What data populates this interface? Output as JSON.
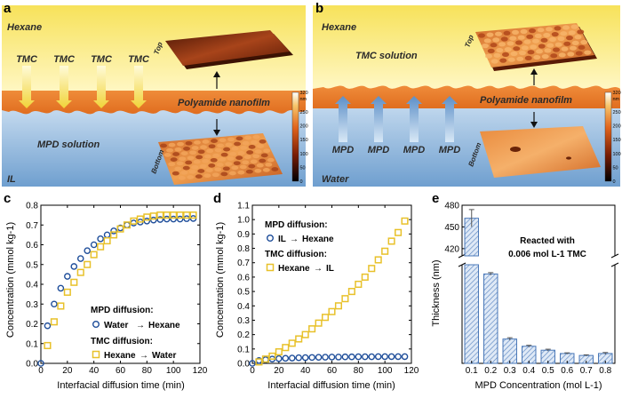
{
  "panels": {
    "a": {
      "letter": "a",
      "top_phase": "Hexane",
      "bottom_phase": "IL",
      "arrow_label": "TMC",
      "arrow_count": 4,
      "film_label": "Polyamide nanofilm",
      "solution_label": "MPD solution",
      "surface_top_label": "Top",
      "surface_bottom_label": "Bottom",
      "colorbar_ticks": [
        "320",
        "nm",
        "250",
        "200",
        "150",
        "100",
        "50",
        "0"
      ]
    },
    "b": {
      "letter": "b",
      "top_phase": "Hexane",
      "bottom_phase": "Water",
      "solution_label": "TMC solution",
      "arrow_label": "MPD",
      "arrow_count": 4,
      "film_label": "Polyamide nanofilm",
      "surface_top_label": "Top",
      "surface_bottom_label": "Bottom",
      "colorbar_ticks": [
        "320",
        "nm",
        "250",
        "200",
        "150",
        "100",
        "50",
        "0"
      ]
    }
  },
  "colors": {
    "series_blue": "#1f4e9a",
    "series_yellow": "#e8c12a",
    "bar_edge": "#4a78b8"
  },
  "chart_data": [
    {
      "panel": "c",
      "type": "scatter",
      "xlabel": "Interfacial diffusion time (min)",
      "ylabel": "Concentration (mmol kg-1)",
      "xlim": [
        0,
        120
      ],
      "ylim": [
        0,
        0.8
      ],
      "xticks": [
        0,
        20,
        40,
        60,
        80,
        100,
        120
      ],
      "yticks": [
        0,
        0.1,
        0.2,
        0.3,
        0.4,
        0.5,
        0.6,
        0.7,
        0.8
      ],
      "legend_group1": "MPD diffusion:",
      "legend_group2": "TMC diffusion:",
      "series": [
        {
          "name": "Water",
          "name2": "Hexane",
          "marker": "circle",
          "x": [
            0,
            5,
            10,
            15,
            20,
            25,
            30,
            35,
            40,
            45,
            50,
            55,
            60,
            65,
            70,
            75,
            80,
            85,
            90,
            95,
            100,
            105,
            110,
            115
          ],
          "y": [
            0.0,
            0.19,
            0.3,
            0.38,
            0.44,
            0.49,
            0.53,
            0.57,
            0.6,
            0.63,
            0.65,
            0.67,
            0.685,
            0.7,
            0.71,
            0.715,
            0.72,
            0.725,
            0.728,
            0.73,
            0.73,
            0.73,
            0.732,
            0.733
          ]
        },
        {
          "name": "Hexane",
          "name2": "Water",
          "marker": "square",
          "x": [
            5,
            10,
            15,
            20,
            25,
            30,
            35,
            40,
            45,
            50,
            55,
            60,
            65,
            70,
            75,
            80,
            85,
            90,
            95,
            100,
            105,
            110,
            115
          ],
          "y": [
            0.09,
            0.21,
            0.29,
            0.36,
            0.41,
            0.46,
            0.5,
            0.55,
            0.59,
            0.62,
            0.65,
            0.68,
            0.7,
            0.72,
            0.73,
            0.74,
            0.745,
            0.75,
            0.75,
            0.75,
            0.75,
            0.75,
            0.75
          ]
        }
      ]
    },
    {
      "panel": "d",
      "type": "scatter",
      "xlabel": "Interfacial diffusion time (min)",
      "ylabel": "Concentration (mmol kg-1)",
      "xlim": [
        0,
        120
      ],
      "ylim": [
        0,
        1.1
      ],
      "xticks": [
        0,
        20,
        40,
        60,
        80,
        100,
        120
      ],
      "yticks": [
        0,
        0.1,
        0.2,
        0.3,
        0.4,
        0.5,
        0.6,
        0.7,
        0.8,
        0.9,
        1.0,
        1.1
      ],
      "legend_group1": "MPD diffusion:",
      "legend_group2": "TMC diffusion:",
      "series": [
        {
          "name": "IL",
          "name2": "Hexane",
          "marker": "circle",
          "x": [
            0,
            5,
            10,
            15,
            20,
            25,
            30,
            35,
            40,
            45,
            50,
            55,
            60,
            65,
            70,
            75,
            80,
            85,
            90,
            95,
            100,
            105,
            110,
            115
          ],
          "y": [
            0.0,
            0.02,
            0.025,
            0.03,
            0.033,
            0.035,
            0.037,
            0.039,
            0.04,
            0.041,
            0.042,
            0.043,
            0.044,
            0.044,
            0.045,
            0.045,
            0.046,
            0.046,
            0.046,
            0.047,
            0.047,
            0.047,
            0.047,
            0.047
          ]
        },
        {
          "name": "Hexane",
          "name2": "IL",
          "marker": "square",
          "x": [
            5,
            10,
            15,
            20,
            25,
            30,
            35,
            40,
            45,
            50,
            55,
            60,
            65,
            70,
            75,
            80,
            85,
            90,
            95,
            100,
            105,
            110,
            115
          ],
          "y": [
            0.01,
            0.03,
            0.05,
            0.08,
            0.11,
            0.14,
            0.17,
            0.2,
            0.24,
            0.28,
            0.32,
            0.36,
            0.4,
            0.45,
            0.5,
            0.55,
            0.6,
            0.66,
            0.72,
            0.78,
            0.85,
            0.91,
            0.99
          ]
        }
      ]
    },
    {
      "panel": "e",
      "type": "bar",
      "xlabel": "MPD Concentration (mol L-1)",
      "ylabel": "Thickness (nm)",
      "annotation_line1": "Reacted with",
      "annotation_line2": "0.006 mol L-1 TMC",
      "categories": [
        "0.1",
        "0.2",
        "0.3",
        "0.4",
        "0.5",
        "0.6",
        "0.7",
        "0.8"
      ],
      "values": [
        462,
        136,
        37,
        26,
        20,
        15,
        12,
        15
      ],
      "errors": [
        12,
        2,
        2,
        1.5,
        1.5,
        1,
        1,
        1.5
      ],
      "ylim_lower": [
        0,
        150
      ],
      "ylim_upper": [
        410,
        480
      ],
      "yticks_upper": [
        420,
        450,
        480
      ]
    }
  ]
}
